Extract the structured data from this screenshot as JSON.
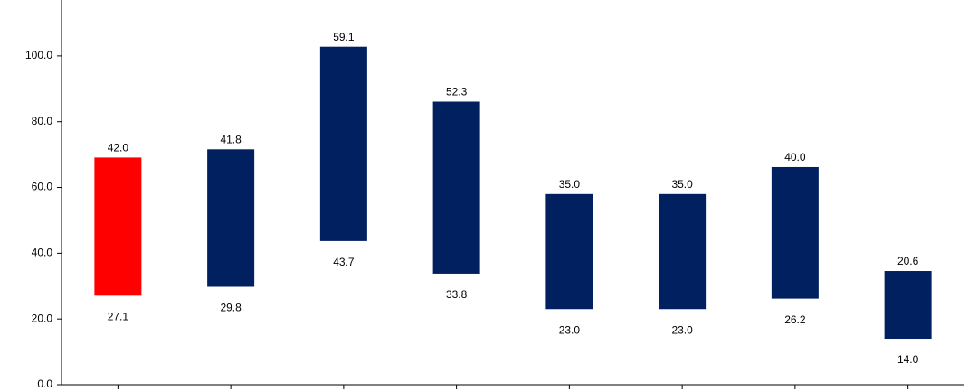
{
  "chart_data": {
    "type": "floating-bar",
    "categories": [
      null,
      null,
      null,
      null,
      null,
      null,
      null,
      null
    ],
    "series": [
      {
        "values": [
          27.1,
          29.8,
          43.7,
          33.8,
          23.0,
          23.0,
          26.2,
          14.0
        ],
        "value_labels": [
          "27.1",
          "29.8",
          "43.7",
          "33.8",
          "23.0",
          "23.0",
          "26.2",
          "14.0"
        ]
      },
      {
        "color": "#002060",
        "colors": [
          "#ff0000",
          "#002060",
          "#002060",
          "#002060",
          "#002060",
          "#002060",
          "#002060",
          "#002060"
        ],
        "values": [
          42.0,
          41.8,
          59.1,
          52.3,
          35.0,
          35.0,
          40.0,
          20.6
        ],
        "value_labels": [
          "42.0",
          "41.8",
          "59.1",
          "52.3",
          "35.0",
          "35.0",
          "40.0",
          "20.6"
        ]
      }
    ],
    "ylim": [
      0,
      117
    ],
    "yticks": [
      {
        "value": 0,
        "label": "0.0"
      },
      {
        "value": 20,
        "label": "20.0"
      },
      {
        "value": 40,
        "label": "40.0"
      },
      {
        "value": 60,
        "label": "60.0"
      },
      {
        "value": 80,
        "label": "80.0"
      },
      {
        "value": 100,
        "label": "100.0"
      }
    ]
  }
}
